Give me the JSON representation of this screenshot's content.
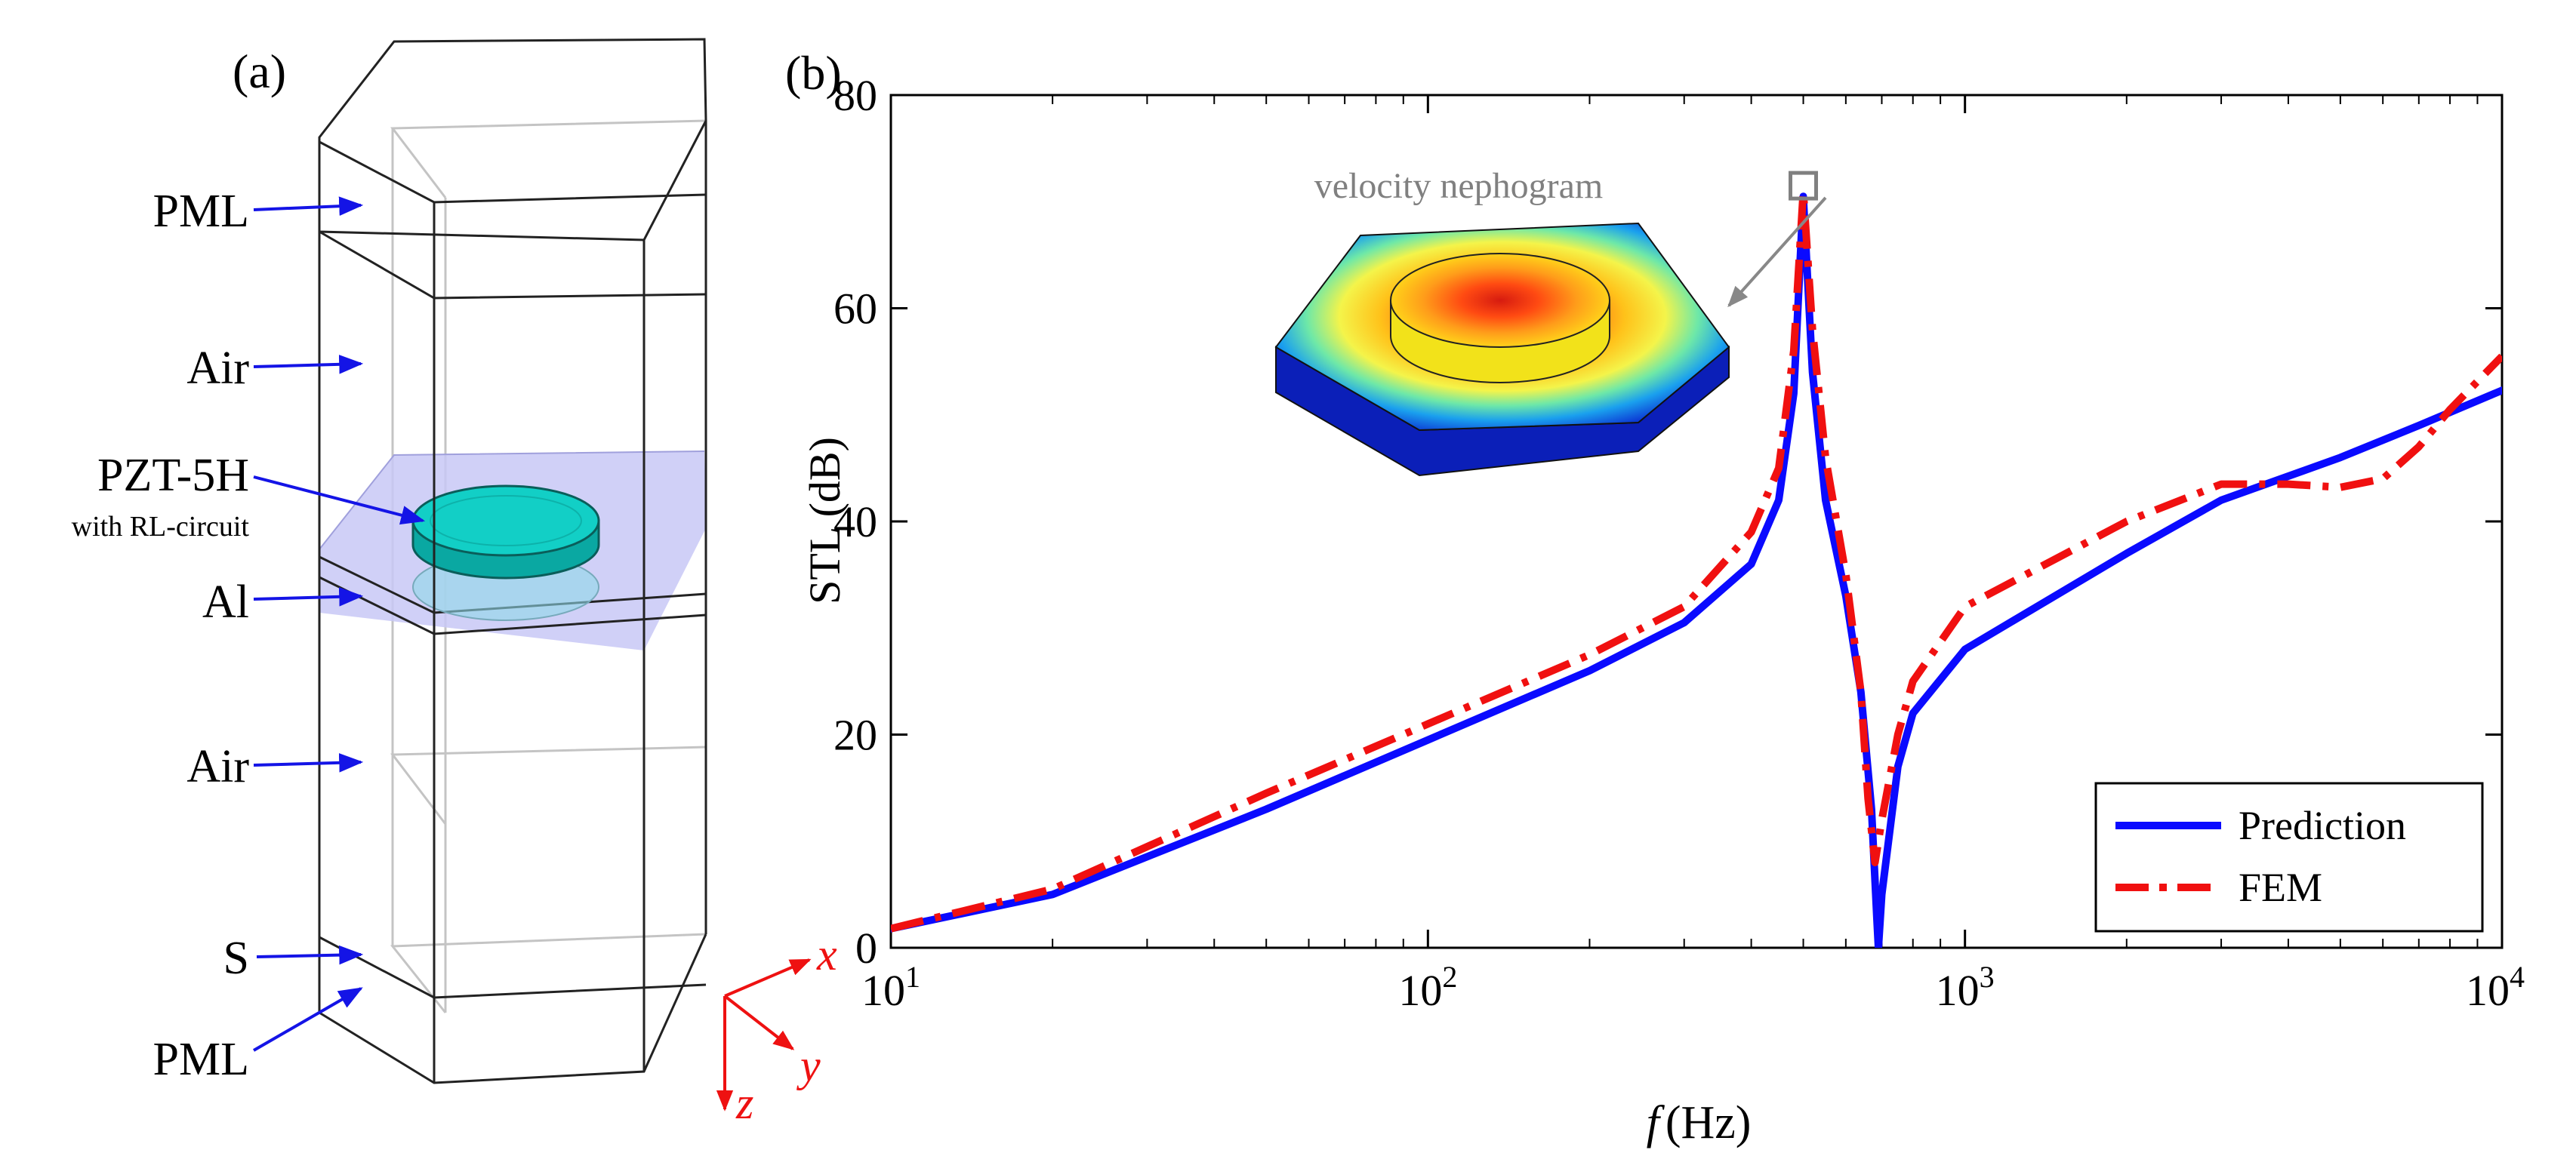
{
  "panel_a": {
    "label": "(a)",
    "layer_labels": {
      "pml_top": "PML",
      "air_top": "Air",
      "pzt": "PZT-5H",
      "pzt_note": "with RL-circuit",
      "al": "Al",
      "air_bottom": "Air",
      "s": "S",
      "pml_bottom": "PML"
    },
    "axes_triad": {
      "x": "x",
      "y": "y",
      "z": "z"
    },
    "colors": {
      "arrow": "#1414e6",
      "triad": "#ee1111",
      "pzt_disk": "#10c8c0",
      "plate": "#c8c8f6"
    }
  },
  "panel_b": {
    "label": "(b)",
    "inset_caption": "velocity nephogram"
  },
  "chart_data": {
    "type": "line",
    "xscale": "log",
    "xlim": [
      10,
      10000
    ],
    "ylim": [
      0,
      80
    ],
    "xlabel_italic": "f",
    "xlabel_unit": "(Hz)",
    "ylabel": "STL (dB)",
    "xticks": [
      {
        "value": 10,
        "base": "10",
        "exp": "1"
      },
      {
        "value": 100,
        "base": "10",
        "exp": "2"
      },
      {
        "value": 1000,
        "base": "10",
        "exp": "3"
      },
      {
        "value": 10000,
        "base": "10",
        "exp": "4"
      }
    ],
    "yticks": [
      "0",
      "20",
      "40",
      "60",
      "80"
    ],
    "legend_position": "bottom-right",
    "series": [
      {
        "name": "Prediction",
        "color": "#0a0aff",
        "style": "solid",
        "points": [
          [
            10,
            1.8
          ],
          [
            20,
            5
          ],
          [
            50,
            13
          ],
          [
            100,
            19.5
          ],
          [
            200,
            26
          ],
          [
            300,
            30.5
          ],
          [
            400,
            36
          ],
          [
            450,
            42
          ],
          [
            480,
            52
          ],
          [
            500,
            70.5
          ],
          [
            520,
            54
          ],
          [
            550,
            42
          ],
          [
            600,
            33
          ],
          [
            640,
            24
          ],
          [
            670,
            13
          ],
          [
            685,
            3
          ],
          [
            690,
            0
          ],
          [
            700,
            5
          ],
          [
            750,
            17
          ],
          [
            800,
            22
          ],
          [
            1000,
            28
          ],
          [
            2000,
            37
          ],
          [
            3000,
            42
          ],
          [
            5000,
            46
          ],
          [
            7000,
            49
          ],
          [
            10000,
            52.3
          ]
        ]
      },
      {
        "name": "FEM",
        "color": "#f01010",
        "style": "dashdot",
        "points": [
          [
            10,
            1.8
          ],
          [
            20,
            5.5
          ],
          [
            50,
            14.5
          ],
          [
            100,
            21
          ],
          [
            200,
            27.5
          ],
          [
            300,
            32
          ],
          [
            400,
            39
          ],
          [
            450,
            45
          ],
          [
            480,
            56
          ],
          [
            500,
            71
          ],
          [
            520,
            58
          ],
          [
            550,
            46
          ],
          [
            600,
            35
          ],
          [
            640,
            24
          ],
          [
            660,
            14
          ],
          [
            680,
            8
          ],
          [
            700,
            12
          ],
          [
            750,
            20
          ],
          [
            800,
            25
          ],
          [
            1000,
            32
          ],
          [
            2000,
            40
          ],
          [
            3000,
            43.5
          ],
          [
            4000,
            43.5
          ],
          [
            5000,
            43.2
          ],
          [
            6000,
            44
          ],
          [
            7000,
            47
          ],
          [
            8000,
            50.5
          ],
          [
            10000,
            55.5
          ]
        ]
      }
    ],
    "annotation": {
      "marker_at": [
        500,
        71
      ],
      "caption": "velocity nephogram"
    }
  }
}
